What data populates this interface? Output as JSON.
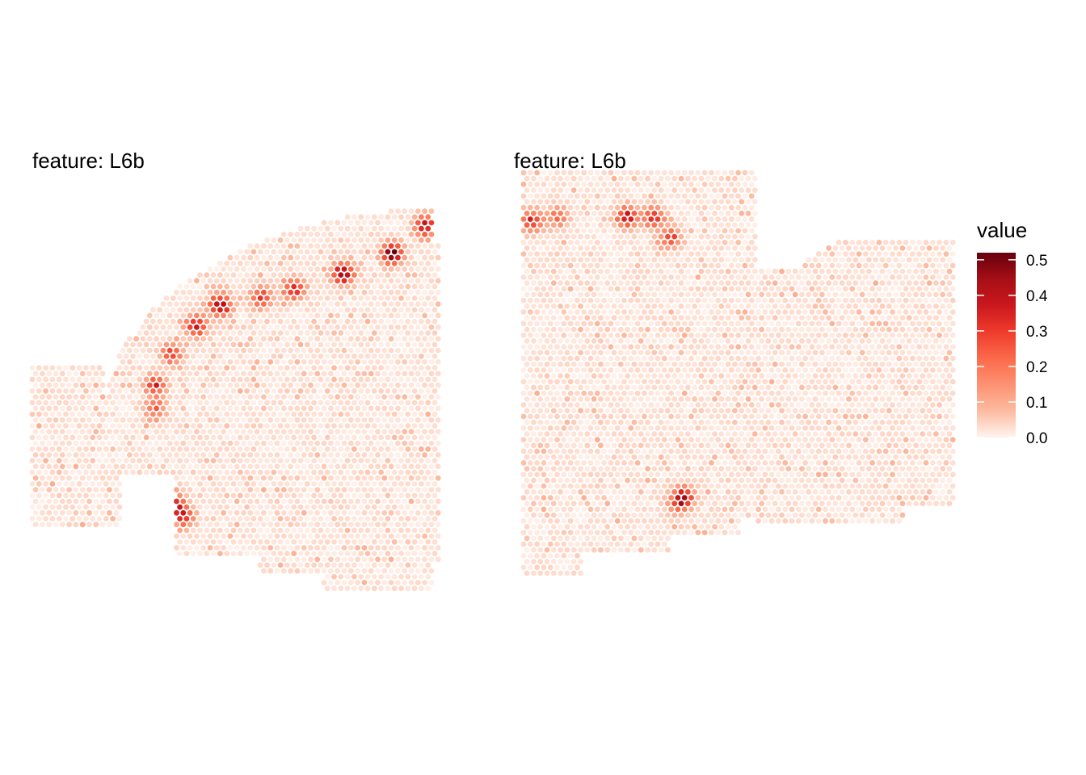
{
  "chart_data": {
    "type": "heatmap",
    "subtype": "spatial-spot-map",
    "panels": [
      {
        "title": "feature:  L6b",
        "hotspots": [
          {
            "u": 0.96,
            "v": 0.08,
            "value": 0.38
          },
          {
            "u": 0.88,
            "v": 0.15,
            "value": 0.5
          },
          {
            "u": 0.76,
            "v": 0.2,
            "value": 0.44
          },
          {
            "u": 0.64,
            "v": 0.24,
            "value": 0.33
          },
          {
            "u": 0.56,
            "v": 0.26,
            "value": 0.3
          },
          {
            "u": 0.46,
            "v": 0.28,
            "value": 0.42
          },
          {
            "u": 0.4,
            "v": 0.33,
            "value": 0.36
          },
          {
            "u": 0.34,
            "v": 0.4,
            "value": 0.26
          },
          {
            "u": 0.3,
            "v": 0.48,
            "value": 0.3
          },
          {
            "u": 0.3,
            "v": 0.54,
            "value": 0.2
          },
          {
            "u": 0.32,
            "v": 0.74,
            "value": 0.24
          },
          {
            "u": 0.35,
            "v": 0.78,
            "value": 0.32
          },
          {
            "u": 0.37,
            "v": 0.81,
            "value": 0.28
          }
        ]
      },
      {
        "title": "feature:  L6b",
        "hotspots": [
          {
            "u": 0.02,
            "v": 0.12,
            "value": 0.3
          },
          {
            "u": 0.08,
            "v": 0.11,
            "value": 0.2
          },
          {
            "u": 0.24,
            "v": 0.11,
            "value": 0.38
          },
          {
            "u": 0.3,
            "v": 0.11,
            "value": 0.3
          },
          {
            "u": 0.34,
            "v": 0.16,
            "value": 0.26
          },
          {
            "u": 0.37,
            "v": 0.8,
            "value": 0.3
          },
          {
            "u": 0.36,
            "v": 0.82,
            "value": 0.22
          }
        ]
      }
    ],
    "legend": {
      "title": "value",
      "ticks": [
        "0.0",
        "0.1",
        "0.2",
        "0.3",
        "0.4",
        "0.5"
      ],
      "min": 0,
      "max": 0.52,
      "colors": [
        "#fff5f0",
        "#fcbba1",
        "#fc9272",
        "#fb6a4a",
        "#ef3b2c",
        "#cb181d",
        "#a50f15",
        "#67000d"
      ]
    }
  }
}
